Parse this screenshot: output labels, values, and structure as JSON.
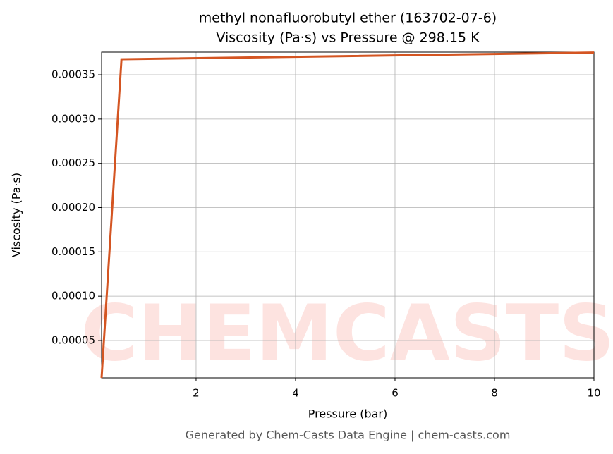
{
  "chart_data": {
    "type": "line",
    "title": "methyl nonafluorobutyl ether (163702-07-6)",
    "subtitle": "Viscosity (Pa·s) vs Pressure @ 298.15 K",
    "x_label": "Pressure (bar)",
    "y_label": "Viscosity (Pa·s)",
    "footer": "Generated by Chem-Casts Data Engine | chem-casts.com",
    "watermark": "CHEMCASTS",
    "x": [
      0.1,
      0.5,
      10
    ],
    "series": [
      {
        "name": "Viscosity",
        "color": "#d45522",
        "values": [
          7.8e-06,
          0.0003675,
          0.000375
        ]
      }
    ],
    "xlim": [
      0.1,
      10
    ],
    "ylim": [
      7.8e-06,
      0.0003755
    ],
    "xticks": [
      2,
      4,
      6,
      8,
      10
    ],
    "yticks": [
      5e-05,
      {
        "value": 0.0001,
        "label": "0.00010"
      },
      0.00015,
      {
        "value": 0.0002,
        "label": "0.00020"
      },
      0.00025,
      {
        "value": 0.0003,
        "label": "0.00030"
      },
      0.00035
    ],
    "grid": true
  }
}
